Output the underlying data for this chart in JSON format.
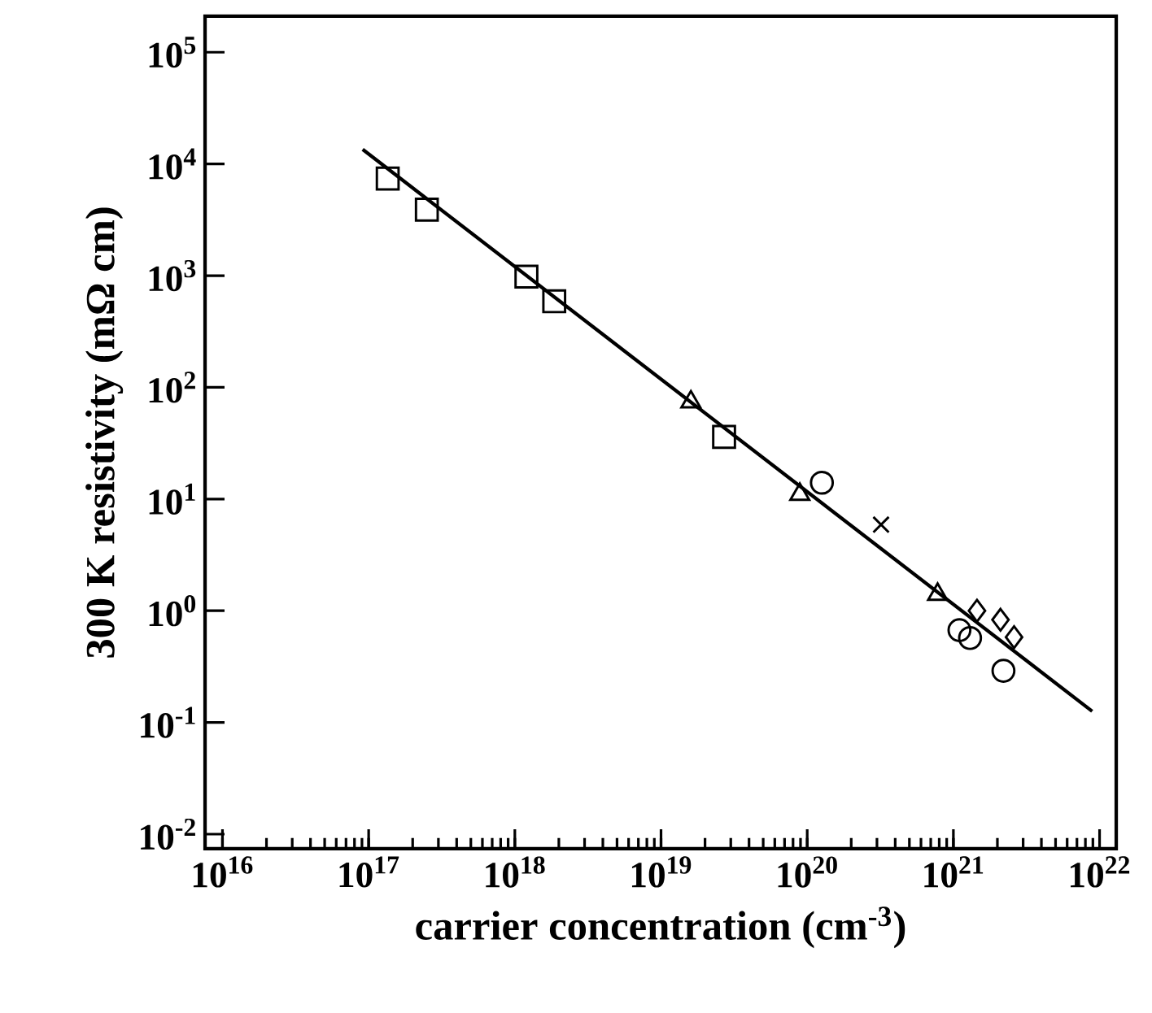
{
  "chart_data": {
    "type": "scatter",
    "xlabel": "carrier concentration (cm$^{-3}$)",
    "ylabel": "300 K resistivity (mΩ cm)",
    "log": "xy",
    "grid": false,
    "xlim": [
      7600000000000000.0,
      1.3e+22
    ],
    "ylim": [
      0.0074,
      210000.0
    ],
    "xticks": [
      {
        "value": 1e+16,
        "label": "10$^{16}$"
      },
      {
        "value": 1e+17,
        "label": "10$^{17}$"
      },
      {
        "value": 1e+18,
        "label": "10$^{18}$"
      },
      {
        "value": 1e+19,
        "label": "10$^{19}$"
      },
      {
        "value": 1e+20,
        "label": "10$^{20}$"
      },
      {
        "value": 1e+21,
        "label": "10$^{21}$"
      },
      {
        "value": 1e+22,
        "label": "10$^{22}$"
      }
    ],
    "yticks": [
      {
        "value": 0.01,
        "label": "10$^{-2}$"
      },
      {
        "value": 0.1,
        "label": "10$^{-1}$"
      },
      {
        "value": 1,
        "label": "10$^{0}$"
      },
      {
        "value": 10,
        "label": "10$^{1}$"
      },
      {
        "value": 100,
        "label": "10$^{2}$"
      },
      {
        "value": 1000,
        "label": "10$^{3}$"
      },
      {
        "value": 10000,
        "label": "10$^{4}$"
      },
      {
        "value": 100000,
        "label": "10$^{5}$"
      }
    ],
    "series": [
      {
        "type": "line",
        "color": "#000000",
        "marker": "none",
        "line_style": "solid",
        "x": [
          9.1e+16,
          8.9e+21
        ],
        "values": [
          13500,
          0.126
        ]
      },
      {
        "color": "#000000",
        "marker": "square",
        "x": [
          1.35e+17,
          2.5e+17,
          1.2e+18,
          1.86e+18,
          2.7e+19
        ],
        "values": [
          7400,
          3900,
          980,
          590,
          36
        ]
      },
      {
        "color": "#000000",
        "marker": "triangle",
        "x": [
          1.6e+19,
          8.9e+19,
          7.8e+20
        ],
        "values": [
          74,
          11,
          1.4
        ]
      },
      {
        "color": "#000000",
        "marker": "circle",
        "x": [
          1.26e+20,
          1.1e+21,
          1.3e+21,
          2.2e+21
        ],
        "values": [
          14,
          0.67,
          0.57,
          0.29
        ]
      },
      {
        "color": "#000000",
        "marker": "cross",
        "x": [
          3.2e+20
        ],
        "values": [
          5.9
        ]
      },
      {
        "color": "#000000",
        "marker": "diamond",
        "x": [
          1.45e+21,
          2.1e+21,
          2.6e+21
        ],
        "values": [
          1.0,
          0.83,
          0.58
        ]
      }
    ]
  }
}
